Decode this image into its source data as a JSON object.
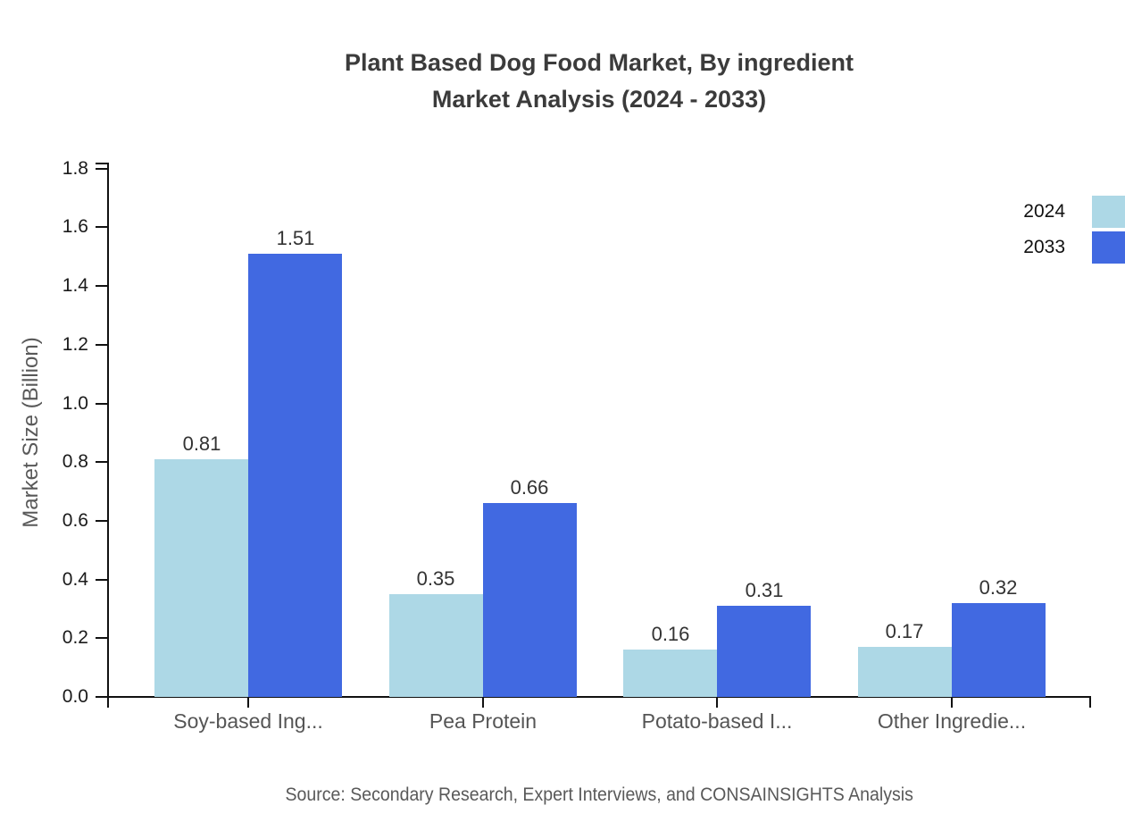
{
  "title": {
    "line1": "Plant Based Dog Food Market, By ingredient",
    "line2": "Market Analysis (2024 - 2033)"
  },
  "source_note": "Source: Secondary Research, Expert Interviews, and CONSAINSIGHTS Analysis",
  "chart_data": {
    "type": "bar",
    "title": "Plant Based Dog Food Market, By ingredient Market Analysis (2024 - 2033)",
    "categories": [
      "Soy-based Ing...",
      "Pea Protein",
      "Potato-based I...",
      "Other Ingredie..."
    ],
    "series": [
      {
        "name": "2024",
        "color": "#add8e6",
        "values": [
          0.81,
          0.35,
          0.16,
          0.17
        ]
      },
      {
        "name": "2033",
        "color": "#4169e1",
        "values": [
          1.51,
          0.66,
          0.31,
          0.32
        ]
      }
    ],
    "xlabel": "",
    "ylabel": "Market Size (Billion)",
    "ylim": [
      0,
      1.8
    ],
    "yticks": [
      0.0,
      0.2,
      0.4,
      0.6,
      0.8,
      1.0,
      1.2,
      1.4,
      1.6,
      1.8
    ],
    "grid": false,
    "legend_position": "top-right",
    "value_labels": true
  },
  "colors": {
    "axis": "#111111",
    "title_text": "#3b3b3b",
    "tick_label": "#1a1a1a",
    "muted_text": "#595959",
    "value_label": "#333333",
    "background": "#ffffff"
  }
}
